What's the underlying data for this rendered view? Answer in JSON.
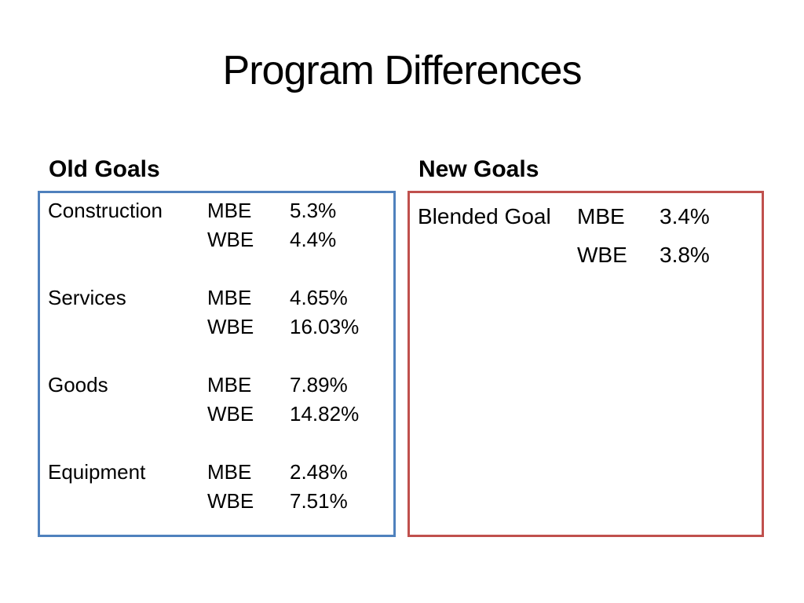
{
  "slide": {
    "title": "Program Differences",
    "background_color": "#ffffff",
    "text_color": "#000000"
  },
  "old_goals": {
    "heading": "Old Goals",
    "border_color": "#4F81BD",
    "groups": [
      {
        "category": "Construction",
        "rows": [
          {
            "type": "MBE",
            "value": "5.3%"
          },
          {
            "type": "WBE",
            "value": "4.4%"
          }
        ]
      },
      {
        "category": "Services",
        "rows": [
          {
            "type": "MBE",
            "value": "4.65%"
          },
          {
            "type": "WBE",
            "value": "16.03%"
          }
        ]
      },
      {
        "category": "Goods",
        "rows": [
          {
            "type": "MBE",
            "value": "7.89%"
          },
          {
            "type": "WBE",
            "value": "14.82%"
          }
        ]
      },
      {
        "category": "Equipment",
        "rows": [
          {
            "type": "MBE",
            "value": "2.48%"
          },
          {
            "type": "WBE",
            "value": "7.51%"
          }
        ]
      }
    ]
  },
  "new_goals": {
    "heading": "New Goals",
    "border_color": "#C0504D",
    "groups": [
      {
        "category": "Blended Goal",
        "rows": [
          {
            "type": "MBE",
            "value": "3.4%"
          },
          {
            "type": "WBE",
            "value": "3.8%"
          }
        ]
      }
    ]
  }
}
